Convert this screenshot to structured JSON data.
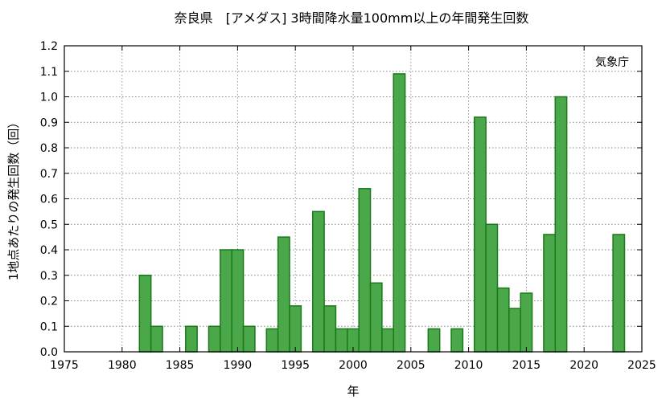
{
  "chart_data": {
    "type": "bar",
    "title": "奈良県　[アメダス] 3時間降水量100mm以上の年間発生回数",
    "xlabel": "年",
    "ylabel": "1地点あたりの発生回数（回）",
    "annotation": "気象庁",
    "xlim": [
      1975,
      2025
    ],
    "ylim": [
      0,
      1.2
    ],
    "xticks": [
      "1975",
      "1980",
      "1985",
      "1990",
      "1995",
      "2000",
      "2005",
      "2010",
      "2015",
      "2020",
      "2025"
    ],
    "yticks": [
      "0.0",
      "0.1",
      "0.2",
      "0.3",
      "0.4",
      "0.5",
      "0.6",
      "0.7",
      "0.8",
      "0.9",
      "1.0",
      "1.1",
      "1.2"
    ],
    "grid": true,
    "bar_color": "#4aa84a",
    "bar_edge_color": "#1a7a1a",
    "x": [
      1982,
      1983,
      1986,
      1988,
      1989,
      1990,
      1991,
      1993,
      1994,
      1995,
      1997,
      1998,
      1999,
      2000,
      2001,
      2002,
      2003,
      2004,
      2007,
      2009,
      2011,
      2012,
      2013,
      2014,
      2015,
      2017,
      2018,
      2023
    ],
    "values": [
      0.3,
      0.1,
      0.1,
      0.1,
      0.4,
      0.4,
      0.1,
      0.09,
      0.45,
      0.18,
      0.55,
      0.18,
      0.09,
      0.09,
      0.64,
      0.27,
      0.09,
      1.09,
      0.09,
      0.09,
      0.92,
      0.5,
      0.25,
      0.17,
      0.23,
      0.46,
      1.0,
      0.46
    ]
  }
}
